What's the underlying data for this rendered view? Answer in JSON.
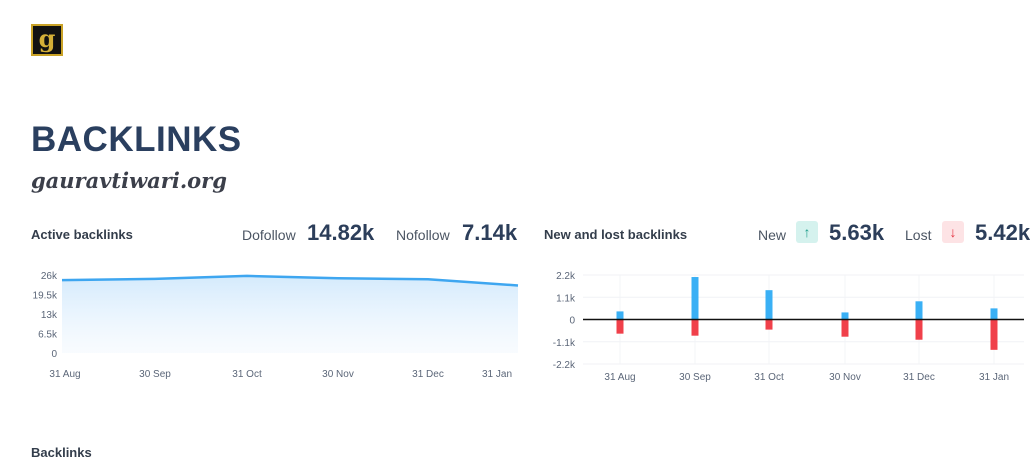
{
  "logo": {
    "text": "g"
  },
  "page": {
    "title": "BACKLINKS",
    "site": "gauravtiwari.org"
  },
  "active": {
    "title": "Active backlinks",
    "dofollow_label": "Dofollow",
    "dofollow_value": "14.82k",
    "nofollow_label": "Nofollow",
    "nofollow_value": "7.14k"
  },
  "newlost": {
    "title": "New and lost backlinks",
    "new_label": "New",
    "new_value": "5.63k",
    "lost_label": "Lost",
    "lost_value": "5.42k",
    "new_icon": "arrow-up-icon",
    "lost_icon": "arrow-down-icon"
  },
  "footer": {
    "section_title": "Backlinks"
  },
  "chart_data": [
    {
      "type": "area",
      "categories": [
        "31 Aug",
        "30 Sep",
        "31 Oct",
        "30 Nov",
        "31 Dec",
        "31 Jan"
      ],
      "values": [
        24300,
        24700,
        25700,
        24900,
        24600,
        22500
      ],
      "yticks": [
        "26k",
        "19.5k",
        "13k",
        "6.5k",
        "0"
      ],
      "ylim": [
        0,
        26000
      ],
      "color": "#3ea6f0",
      "grid": false
    },
    {
      "type": "bar",
      "categories": [
        "31 Aug",
        "30 Sep",
        "31 Oct",
        "30 Nov",
        "31 Dec",
        "31 Jan"
      ],
      "series": [
        {
          "values": [
            400,
            2100,
            1450,
            350,
            900,
            550
          ],
          "color": "#3ab0f5"
        },
        {
          "values": [
            -700,
            -800,
            -500,
            -850,
            -1000,
            -1500
          ],
          "color": "#f0404a"
        }
      ],
      "yticks": [
        "2.2k",
        "1.1k",
        "0",
        "-1.1k",
        "-2.2k"
      ],
      "ylim": [
        -2200,
        2200
      ],
      "grid": true
    }
  ]
}
